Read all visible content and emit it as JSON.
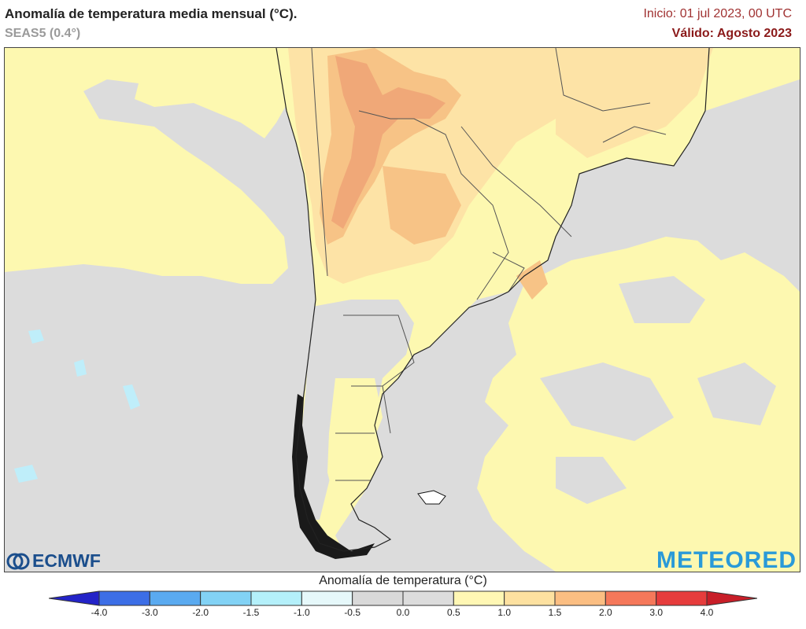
{
  "header": {
    "title": "Anomalía de temperatura media mensual (°C).",
    "subtitle": "SEAS5 (0.4°)",
    "init": "Inicio: 01 jul 2023, 00 UTC",
    "valid": "Válido: Agosto 2023"
  },
  "logos": {
    "left": "ECMWF",
    "right": "METEORED"
  },
  "legend": {
    "title": "Anomalía de temperatura (°C)",
    "ticks": [
      "-4.0",
      "-3.0",
      "-2.0",
      "-1.5",
      "-1.0",
      "-0.5",
      "0.0",
      "0.5",
      "1.0",
      "1.5",
      "2.0",
      "3.0",
      "4.0"
    ],
    "colors": [
      "#2323c8",
      "#3c6ee6",
      "#5aaaf0",
      "#82d2f5",
      "#b4f0fa",
      "#e6f8fa",
      "#d9d9d9",
      "#dcdcdc",
      "#fff7b4",
      "#fde1a0",
      "#fbbe82",
      "#f5785a",
      "#e63c3c",
      "#c81e28"
    ]
  },
  "map_colors": {
    "neutral": "#dcdcdc",
    "light_warm": "#fdf8b0",
    "warm": "#fde3a6",
    "warmer": "#f7c386",
    "hot": "#f0a878",
    "cool": "#bfeefa"
  }
}
